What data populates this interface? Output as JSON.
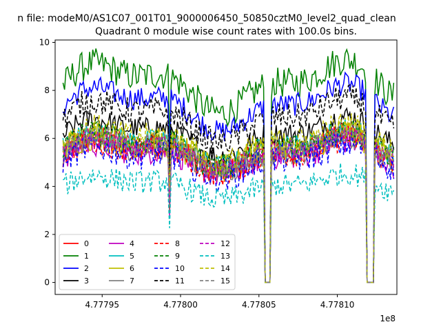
{
  "suptitle": "n file: modeM0/AS1C07_001T01_9000006450_50850cztM0_level2_quad_clean",
  "chart_data": {
    "type": "line",
    "title": "Quadrant 0 module wise count rates with 100.0s bins.",
    "xlabel": "",
    "ylabel": "",
    "xlim": [
      477792000,
      477813800
    ],
    "ylim": [
      -0.5,
      10.1
    ],
    "x_offset_label": "1e8",
    "xticks": [
      477795000,
      477800000,
      477805000,
      477810000
    ],
    "xtick_labels": [
      "4.77795",
      "4.77800",
      "4.77805",
      "4.77810"
    ],
    "yticks": [
      0,
      2,
      4,
      6,
      8,
      10
    ],
    "ytick_labels": [
      "0",
      "2",
      "4",
      "6",
      "8",
      "10"
    ],
    "x_start": 477792500,
    "x_step": 100,
    "gaps": [
      [
        477805400,
        477805700
      ],
      [
        477811900,
        477812300
      ]
    ],
    "legend": {
      "location": "lower-left",
      "columns": 4
    },
    "series": [
      {
        "name": "0",
        "color": "#ff0000",
        "dash": "solid",
        "base": 5.4,
        "amp": 0.35
      },
      {
        "name": "1",
        "color": "#008000",
        "dash": "solid",
        "base": 8.2,
        "amp": 0.4
      },
      {
        "name": "2",
        "color": "#0000ff",
        "dash": "solid",
        "base": 7.3,
        "amp": 0.3
      },
      {
        "name": "3",
        "color": "#000000",
        "dash": "solid",
        "base": 6.1,
        "amp": 0.3
      },
      {
        "name": "4",
        "color": "#bf00bf",
        "dash": "solid",
        "base": 5.2,
        "amp": 0.35
      },
      {
        "name": "5",
        "color": "#00bfbf",
        "dash": "solid",
        "base": 5.6,
        "amp": 0.3
      },
      {
        "name": "6",
        "color": "#bfbf00",
        "dash": "solid",
        "base": 5.5,
        "amp": 0.4
      },
      {
        "name": "7",
        "color": "#808080",
        "dash": "solid",
        "base": 5.3,
        "amp": 0.3
      },
      {
        "name": "8",
        "color": "#ff0000",
        "dash": "dashed",
        "base": 5.3,
        "amp": 0.35
      },
      {
        "name": "9",
        "color": "#008000",
        "dash": "dashed",
        "base": 5.6,
        "amp": 0.35
      },
      {
        "name": "10",
        "color": "#0000ff",
        "dash": "dashed",
        "base": 5.1,
        "amp": 0.4
      },
      {
        "name": "11",
        "color": "#000000",
        "dash": "dashed",
        "base": 6.8,
        "amp": 0.35
      },
      {
        "name": "12",
        "color": "#bf00bf",
        "dash": "dashed",
        "base": 5.4,
        "amp": 0.3
      },
      {
        "name": "13",
        "color": "#00bfbf",
        "dash": "dashed",
        "base": 4.0,
        "amp": 0.3
      },
      {
        "name": "14",
        "color": "#bfbf00",
        "dash": "dashed",
        "base": 5.8,
        "amp": 0.35
      },
      {
        "name": "15",
        "color": "#808080",
        "dash": "dashed",
        "base": 5.5,
        "amp": 0.3
      }
    ]
  }
}
